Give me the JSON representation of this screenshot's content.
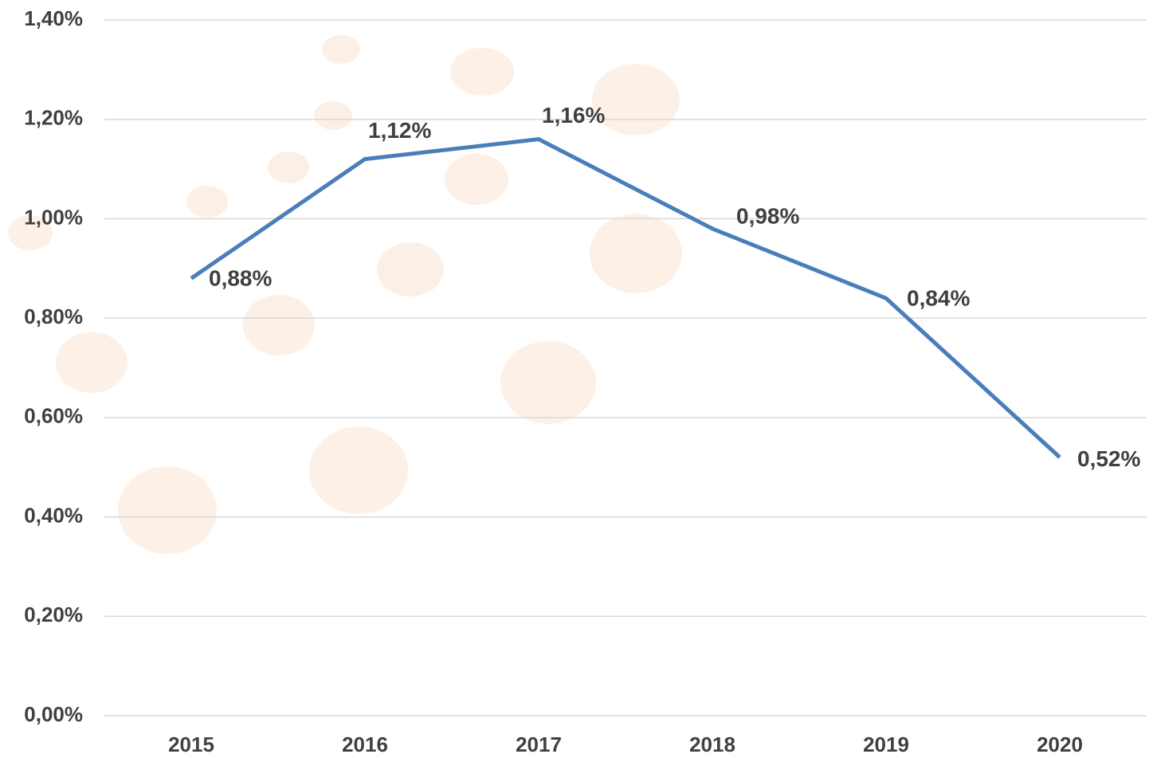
{
  "chart_data": {
    "type": "line",
    "categories": [
      "2015",
      "2016",
      "2017",
      "2018",
      "2019",
      "2020"
    ],
    "series": [
      {
        "color": "#4a7ebb",
        "values": [
          0.88,
          1.12,
          1.16,
          0.98,
          0.84,
          0.52
        ],
        "value_labels": [
          "0,88%",
          "1,12%",
          "1,16%",
          "0,98%",
          "0,84%",
          "0,52%"
        ]
      }
    ],
    "ylim": [
      0,
      1.4
    ],
    "yticks": [
      {
        "value": 0,
        "label": "0,00%"
      },
      {
        "value": 0.2,
        "label": "0,20%"
      },
      {
        "value": 0.4,
        "label": "0,40%"
      },
      {
        "value": 0.6,
        "label": "0,60%"
      },
      {
        "value": 0.8,
        "label": "0,80%"
      },
      {
        "value": 1.0,
        "label": "1,00%"
      },
      {
        "value": 1.2,
        "label": "1,20%"
      },
      {
        "value": 1.4,
        "label": "1,40%"
      }
    ],
    "grid": true
  }
}
